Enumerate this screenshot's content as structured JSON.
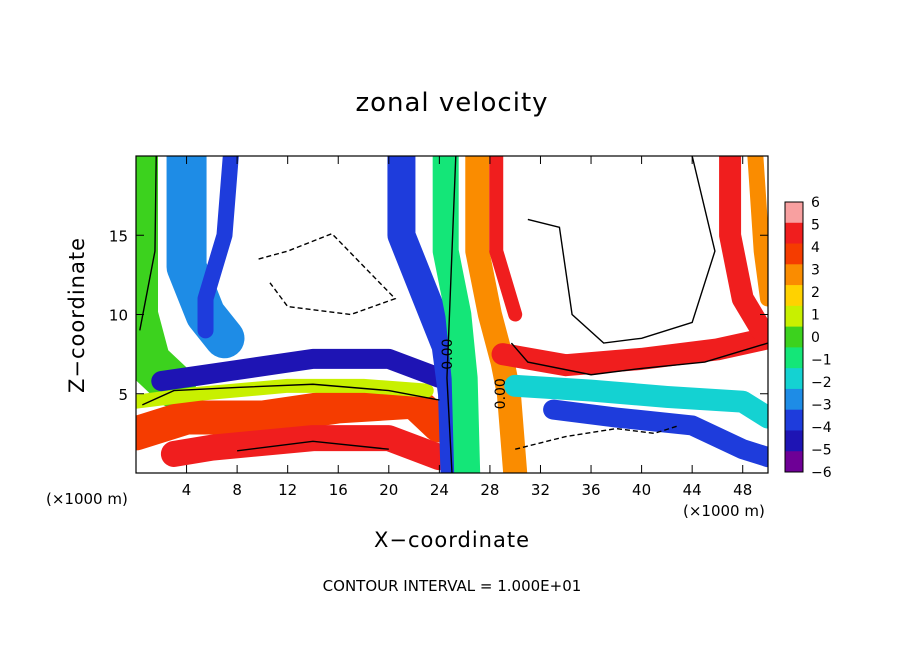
{
  "chart_data": {
    "type": "heatmap",
    "title": "zonal velocity",
    "xlabel": "X−coordinate",
    "ylabel": "Z−coordinate",
    "x_unit_left": "(×1000 m)",
    "x_unit_right": "(×1000 m)",
    "footnote": "CONTOUR INTERVAL = 1.000E+01",
    "xlim": [
      0,
      50
    ],
    "ylim": [
      0,
      20
    ],
    "x_ticks": [
      4,
      8,
      12,
      16,
      20,
      24,
      28,
      32,
      36,
      40,
      44,
      48
    ],
    "y_ticks": [
      5,
      10,
      15
    ],
    "colorbar": {
      "ticks": [
        6,
        5,
        4,
        3,
        2,
        1,
        0,
        -1,
        -2,
        -3,
        -4,
        -5,
        -6
      ],
      "tick_labels": [
        "6",
        "5",
        "4",
        "3",
        "2",
        "1",
        "0",
        "−1",
        "−2",
        "−3",
        "−4",
        "−5",
        "−6"
      ],
      "colors": [
        "#f8a0a0",
        "#f01e1e",
        "#f53c00",
        "#fa8c00",
        "#ffd200",
        "#c8f000",
        "#3cd21e",
        "#14e678",
        "#14d2d2",
        "#1e8ce6",
        "#1e3cdc",
        "#1e14b4",
        "#6e0096"
      ]
    },
    "contour_labels": [
      {
        "text": "0.00",
        "x": 25.0,
        "y": 7.5
      },
      {
        "text": "0.00",
        "x": 29.2,
        "y": 5.0
      }
    ],
    "contour_interval": 10.0,
    "blank_regions_note": "white areas are values outside the ±6 color range"
  }
}
